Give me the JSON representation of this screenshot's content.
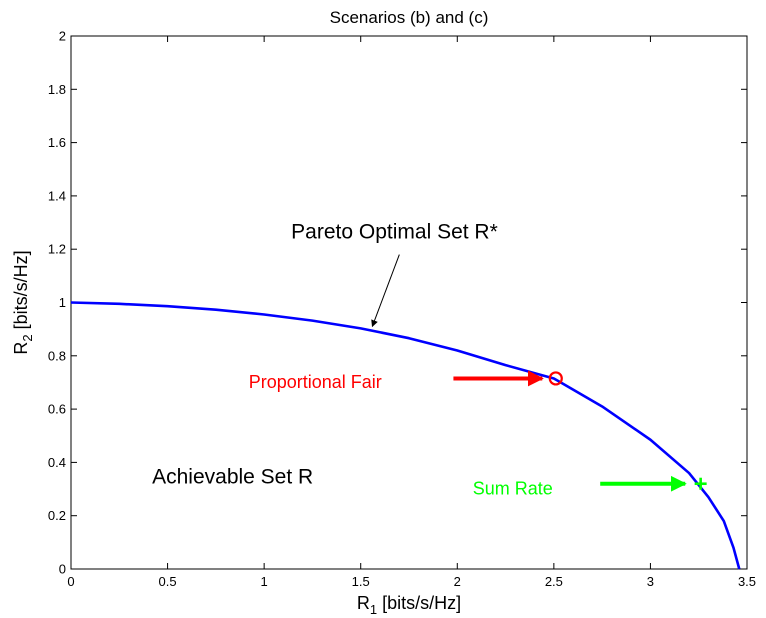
{
  "chart_data": {
    "type": "line",
    "title": "Scenarios (b) and (c)",
    "xlabel": {
      "main": "R",
      "sub": "1",
      "unit": " [bits/s/Hz]"
    },
    "ylabel": {
      "main": "R",
      "sub": "2",
      "unit": " [bits/s/Hz]"
    },
    "xlim": [
      0,
      3.5
    ],
    "ylim": [
      0,
      2
    ],
    "xticks": [
      0,
      0.5,
      1,
      1.5,
      2,
      2.5,
      3,
      3.5
    ],
    "xtick_labels": [
      "0",
      "0.5",
      "1",
      "1.5",
      "2",
      "2.5",
      "3",
      "3.5"
    ],
    "yticks": [
      0,
      0.2,
      0.4,
      0.6,
      0.8,
      1,
      1.2,
      1.4,
      1.6,
      1.8,
      2
    ],
    "ytick_labels": [
      "0",
      "0.2",
      "0.4",
      "0.6",
      "0.8",
      "1",
      "1.2",
      "1.4",
      "1.6",
      "1.8",
      "2"
    ],
    "grid": false,
    "series": [
      {
        "color": "#0000ff",
        "x": [
          0,
          0.25,
          0.5,
          0.75,
          1.0,
          1.25,
          1.5,
          1.75,
          2.0,
          2.25,
          2.5,
          2.75,
          3.0,
          3.2,
          3.3,
          3.38,
          3.43,
          3.46
        ],
        "y": [
          1.0,
          0.995,
          0.986,
          0.973,
          0.955,
          0.932,
          0.903,
          0.866,
          0.82,
          0.765,
          0.715,
          0.61,
          0.485,
          0.36,
          0.27,
          0.18,
          0.08,
          0.0
        ]
      }
    ],
    "points": [
      {
        "name": "proportional-fair",
        "x": 2.51,
        "y": 0.715,
        "marker": "circle",
        "color": "#ff0000"
      },
      {
        "name": "sum-rate",
        "x": 3.26,
        "y": 0.32,
        "marker": "plus",
        "color": "#00ff00"
      }
    ],
    "annotations": [
      {
        "id": "pareto",
        "text": "Pareto Optimal Set R*",
        "color": "#000000",
        "x": 1.14,
        "y": 1.24,
        "arrow_from": [
          1.7,
          1.18
        ],
        "arrow_to": [
          1.56,
          0.91
        ]
      },
      {
        "id": "achievable",
        "text": "Achievable Set R",
        "color": "#000000",
        "x": 0.42,
        "y": 0.32
      },
      {
        "id": "pf",
        "text": "Proportional Fair",
        "color": "#ff0000",
        "x": 0.92,
        "y": 0.68,
        "arrow_from": [
          1.98,
          0.715
        ],
        "arrow_to": [
          2.44,
          0.715
        ]
      },
      {
        "id": "sr",
        "text": "Sum Rate",
        "color": "#00ff00",
        "x": 2.08,
        "y": 0.28,
        "arrow_from": [
          2.74,
          0.32
        ],
        "arrow_to": [
          3.18,
          0.32
        ]
      }
    ]
  }
}
